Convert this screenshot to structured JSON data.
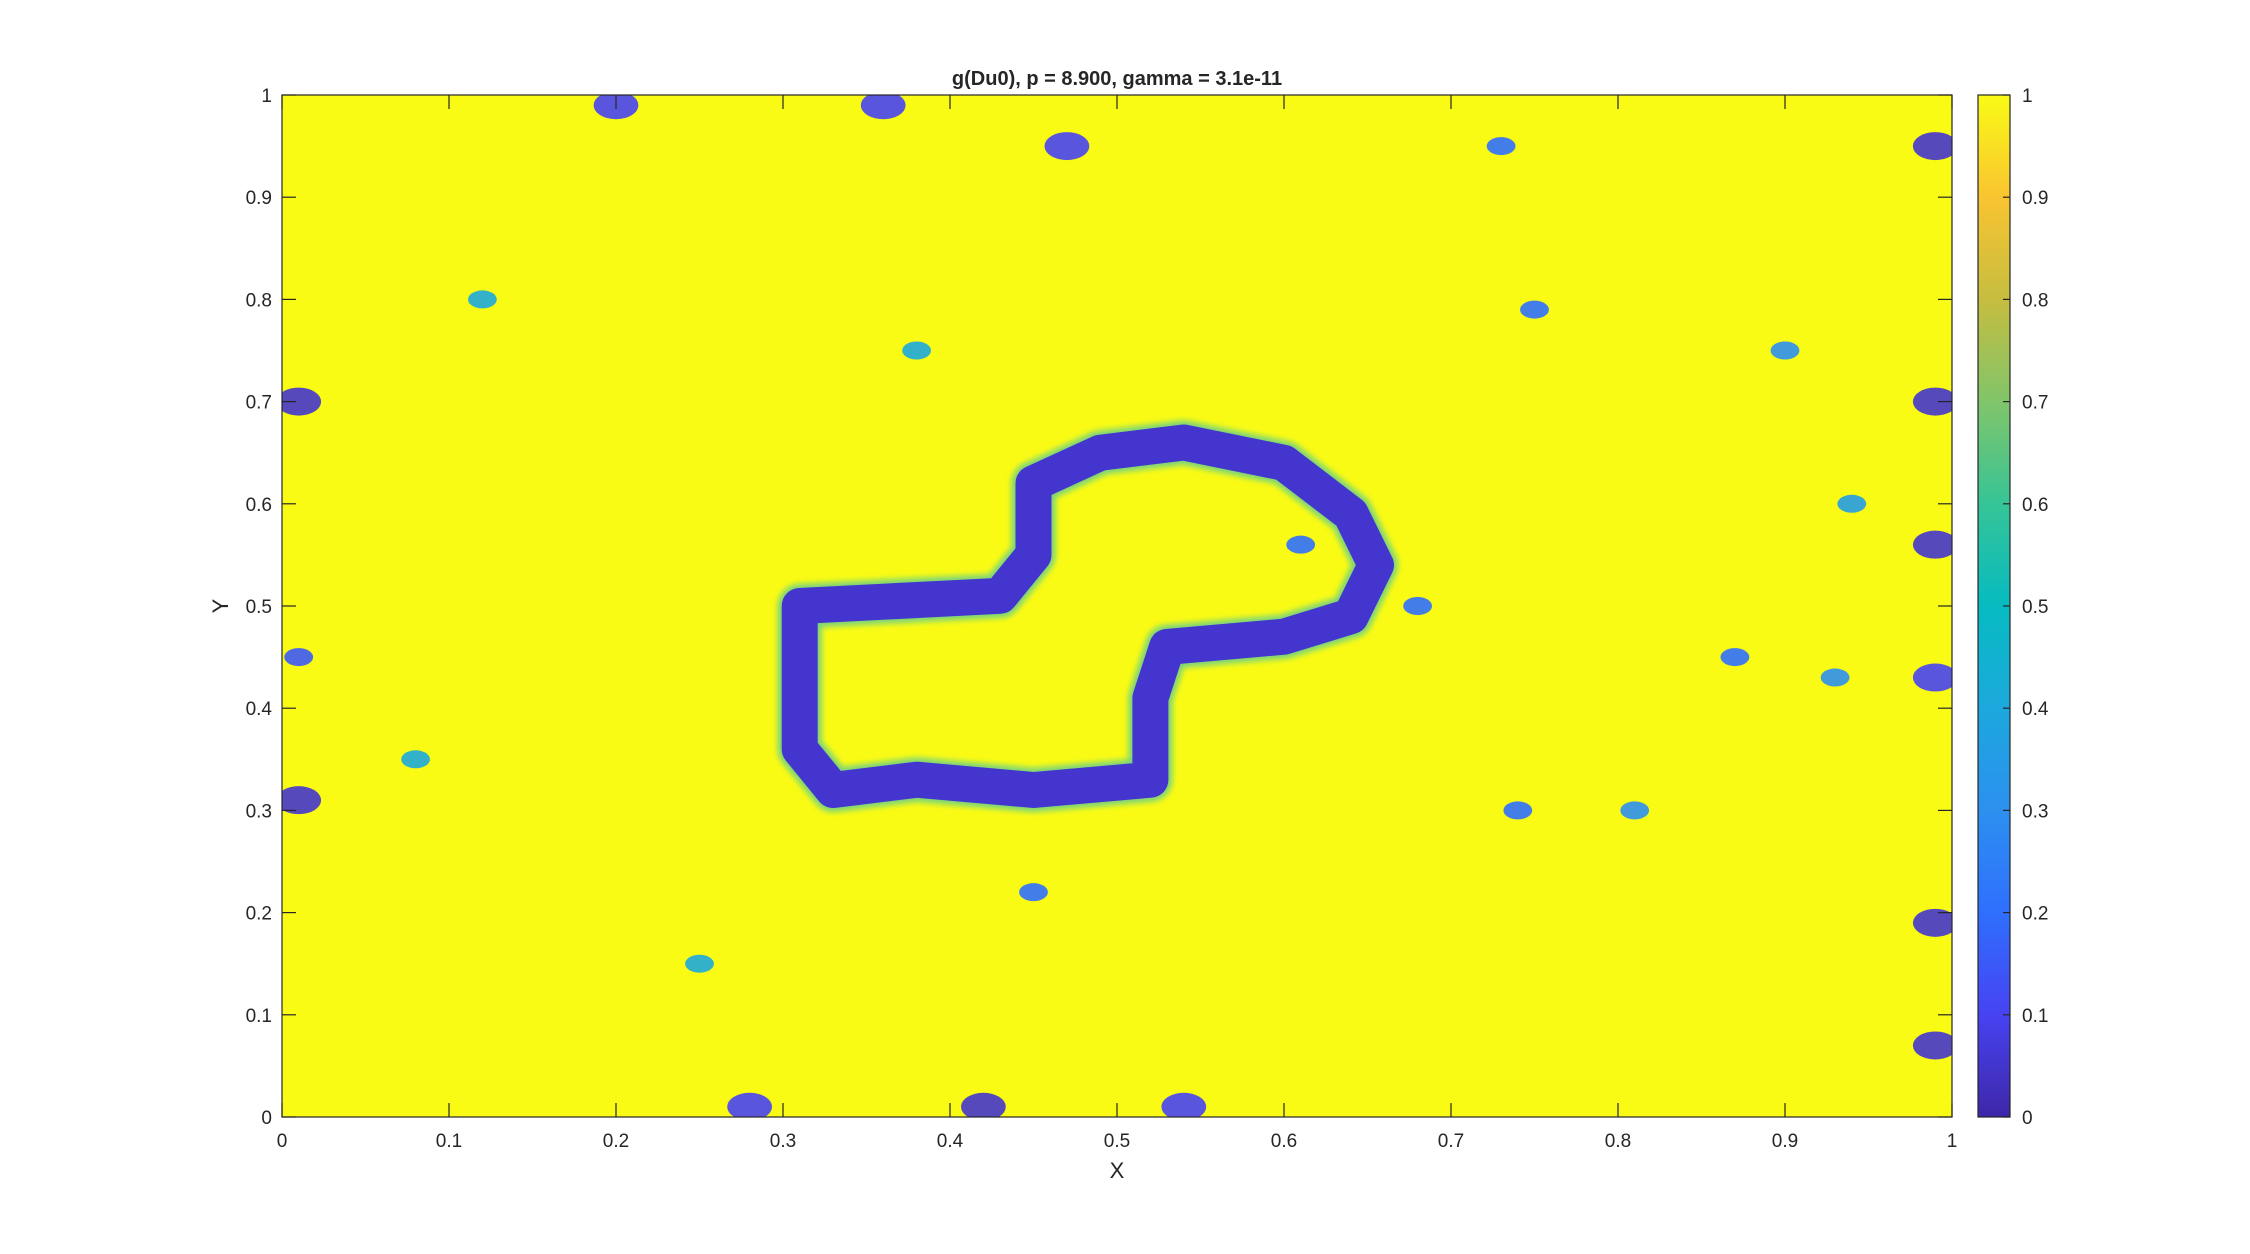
{
  "chart_data": {
    "type": "heatmap",
    "title": "g(Du0), p = 8.900, gamma = 3.1e-11",
    "xlabel": "X",
    "ylabel": "Y",
    "xlim": [
      0,
      1
    ],
    "ylim": [
      0,
      1
    ],
    "xticks": [
      0,
      0.1,
      0.2,
      0.3,
      0.4,
      0.5,
      0.6,
      0.7,
      0.8,
      0.9,
      1
    ],
    "yticks": [
      0,
      0.1,
      0.2,
      0.3,
      0.4,
      0.5,
      0.6,
      0.7,
      0.8,
      0.9,
      1
    ],
    "xtick_labels": [
      "0",
      "0.1",
      "0.2",
      "0.3",
      "0.4",
      "0.5",
      "0.6",
      "0.7",
      "0.8",
      "0.9",
      "1"
    ],
    "ytick_labels": [
      "0",
      "0.1",
      "0.2",
      "0.3",
      "0.4",
      "0.5",
      "0.6",
      "0.7",
      "0.8",
      "0.9",
      "1"
    ],
    "colormap": "parula",
    "colormap_colors": [
      "#3e26a8",
      "#4743f2",
      "#2f6ffe",
      "#2c90ef",
      "#1ca8dd",
      "#06bbc1",
      "#36c496",
      "#81c56a",
      "#c6bd3f",
      "#f9c431",
      "#f9fb15"
    ],
    "clim": [
      0,
      1
    ],
    "colorbar_ticks": [
      0,
      0.1,
      0.2,
      0.3,
      0.4,
      0.5,
      0.6,
      0.7,
      0.8,
      0.9,
      1
    ],
    "colorbar_tick_labels": [
      "0",
      "0.1",
      "0.2",
      "0.3",
      "0.4",
      "0.5",
      "0.6",
      "0.7",
      "0.8",
      "0.9",
      "1"
    ],
    "background_value": 1.0,
    "contour_value": 0.05,
    "contour_outline": [
      [
        0.31,
        0.5
      ],
      [
        0.43,
        0.51
      ],
      [
        0.45,
        0.55
      ],
      [
        0.45,
        0.62
      ],
      [
        0.49,
        0.65
      ],
      [
        0.54,
        0.66
      ],
      [
        0.6,
        0.64
      ],
      [
        0.64,
        0.59
      ],
      [
        0.655,
        0.54
      ],
      [
        0.64,
        0.49
      ],
      [
        0.6,
        0.47
      ],
      [
        0.53,
        0.46
      ],
      [
        0.52,
        0.41
      ],
      [
        0.52,
        0.33
      ],
      [
        0.45,
        0.32
      ],
      [
        0.38,
        0.33
      ],
      [
        0.33,
        0.32
      ],
      [
        0.31,
        0.36
      ],
      [
        0.31,
        0.5
      ]
    ],
    "low_value_features": [
      {
        "x": 0.01,
        "y": 0.7,
        "value": 0.05
      },
      {
        "x": 0.01,
        "y": 0.31,
        "value": 0.05
      },
      {
        "x": 0.01,
        "y": 0.45,
        "value": 0.15
      },
      {
        "x": 0.99,
        "y": 0.56,
        "value": 0.05
      },
      {
        "x": 0.99,
        "y": 0.95,
        "value": 0.05
      },
      {
        "x": 0.99,
        "y": 0.7,
        "value": 0.05
      },
      {
        "x": 0.99,
        "y": 0.43,
        "value": 0.1
      },
      {
        "x": 0.99,
        "y": 0.19,
        "value": 0.05
      },
      {
        "x": 0.99,
        "y": 0.07,
        "value": 0.05
      },
      {
        "x": 0.42,
        "y": 0.01,
        "value": 0.05
      },
      {
        "x": 0.28,
        "y": 0.01,
        "value": 0.1
      },
      {
        "x": 0.54,
        "y": 0.01,
        "value": 0.1
      },
      {
        "x": 0.2,
        "y": 0.99,
        "value": 0.1
      },
      {
        "x": 0.36,
        "y": 0.99,
        "value": 0.1
      },
      {
        "x": 0.47,
        "y": 0.95,
        "value": 0.1
      },
      {
        "x": 0.68,
        "y": 0.5,
        "value": 0.2
      },
      {
        "x": 0.94,
        "y": 0.6,
        "value": 0.35
      },
      {
        "x": 0.9,
        "y": 0.75,
        "value": 0.3
      },
      {
        "x": 0.12,
        "y": 0.8,
        "value": 0.4
      },
      {
        "x": 0.38,
        "y": 0.75,
        "value": 0.4
      },
      {
        "x": 0.75,
        "y": 0.79,
        "value": 0.2
      },
      {
        "x": 0.81,
        "y": 0.3,
        "value": 0.3
      },
      {
        "x": 0.87,
        "y": 0.45,
        "value": 0.2
      },
      {
        "x": 0.74,
        "y": 0.3,
        "value": 0.2
      },
      {
        "x": 0.45,
        "y": 0.22,
        "value": 0.2
      },
      {
        "x": 0.08,
        "y": 0.35,
        "value": 0.4
      },
      {
        "x": 0.25,
        "y": 0.15,
        "value": 0.4
      },
      {
        "x": 0.61,
        "y": 0.56,
        "value": 0.2
      },
      {
        "x": 0.93,
        "y": 0.43,
        "value": 0.3
      },
      {
        "x": 0.73,
        "y": 0.95,
        "value": 0.2
      }
    ]
  }
}
